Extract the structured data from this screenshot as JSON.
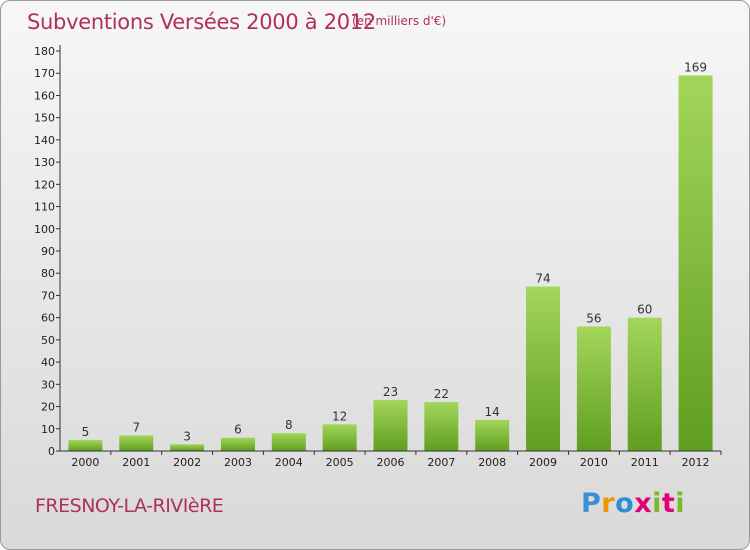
{
  "title": "Subventions Versées 2000 à 2012",
  "unit_note": "(en milliers d'€)",
  "commune": "FRESNOY-LA-RIVIèRE",
  "logo": {
    "text": "Proxiti",
    "letter_colors": [
      "#3a8fd6",
      "#f29400",
      "#2a8fd6",
      "#e2007a",
      "#7cb82f",
      "#e2007a",
      "#7cb82f"
    ]
  },
  "colors": {
    "title": "#b0305a",
    "bar_top": "#a3d65a",
    "bar_bottom": "#5f9e1f",
    "axis": "#333333"
  },
  "chart_data": {
    "type": "bar",
    "title": "Subventions Versées 2000 à 2012",
    "xlabel": "",
    "ylabel": "",
    "categories": [
      "2000",
      "2001",
      "2002",
      "2003",
      "2004",
      "2005",
      "2006",
      "2007",
      "2008",
      "2009",
      "2010",
      "2011",
      "2012"
    ],
    "values": [
      5,
      7,
      3,
      6,
      8,
      12,
      23,
      22,
      14,
      74,
      56,
      60,
      169
    ],
    "ylim": [
      0,
      180
    ],
    "yticks": [
      0,
      10,
      20,
      30,
      40,
      50,
      60,
      70,
      80,
      90,
      100,
      110,
      120,
      130,
      140,
      150,
      160,
      170,
      180
    ],
    "grid": false,
    "legend": "none"
  }
}
